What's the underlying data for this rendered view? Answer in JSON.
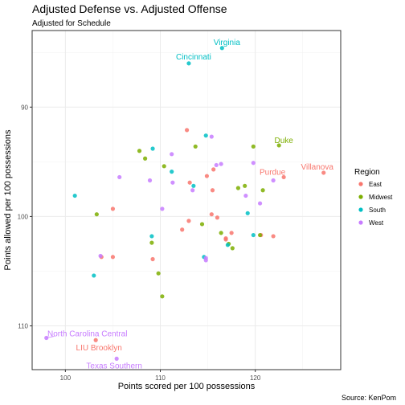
{
  "chart_data": {
    "type": "scatter",
    "title": "Adjusted Defense vs. Adjusted Offense",
    "subtitle": "Adjusted for Schedule",
    "xlabel": "Points scored per 100 possessions",
    "ylabel": "Points allowed per 100 possessions",
    "caption": "Source: KenPom",
    "xlim": [
      96.5,
      129.0
    ],
    "ylim": [
      114.0,
      83.0
    ],
    "y_reversed": true,
    "x_ticks": [
      100,
      110,
      120
    ],
    "x_tick_labels": [
      "100",
      "110",
      "120"
    ],
    "y_ticks": [
      90,
      100,
      110
    ],
    "y_tick_labels": [
      "90",
      "100",
      "110"
    ],
    "grid": true,
    "legend": {
      "title": "Region",
      "position": "right",
      "entries": [
        "East",
        "Midwest",
        "South",
        "West"
      ]
    },
    "colors": {
      "East": "#F8766D",
      "Midwest": "#7CAE00",
      "South": "#00BFC4",
      "West": "#C77CFF"
    },
    "series": [
      {
        "name": "East",
        "points": [
          [
            127.2,
            96.0
          ],
          [
            123.0,
            96.4
          ],
          [
            112.8,
            92.1
          ],
          [
            114.9,
            96.3
          ],
          [
            115.6,
            95.7
          ],
          [
            113.1,
            96.9
          ],
          [
            115.5,
            97.6
          ],
          [
            115.4,
            99.8
          ],
          [
            116.0,
            100.1
          ],
          [
            113.0,
            100.4
          ],
          [
            112.3,
            101.2
          ],
          [
            117.5,
            101.5
          ],
          [
            120.6,
            101.7
          ],
          [
            121.9,
            101.8
          ],
          [
            116.9,
            102.0
          ],
          [
            116.9,
            102.1
          ],
          [
            105.0,
            99.3
          ],
          [
            105.0,
            103.7
          ],
          [
            109.2,
            103.9
          ],
          [
            103.8,
            103.7
          ],
          [
            103.2,
            111.3
          ]
        ]
      },
      {
        "name": "Midwest",
        "points": [
          [
            122.5,
            93.5
          ],
          [
            119.8,
            93.6
          ],
          [
            113.7,
            93.6
          ],
          [
            107.8,
            94.0
          ],
          [
            108.4,
            94.7
          ],
          [
            110.4,
            95.4
          ],
          [
            118.2,
            97.4
          ],
          [
            120.8,
            97.6
          ],
          [
            118.9,
            97.2
          ],
          [
            114.4,
            100.7
          ],
          [
            103.3,
            99.8
          ],
          [
            120.5,
            101.7
          ],
          [
            116.4,
            101.5
          ],
          [
            109.1,
            102.4
          ],
          [
            117.2,
            102.5
          ],
          [
            117.6,
            102.9
          ],
          [
            109.8,
            105.2
          ],
          [
            110.2,
            107.3
          ]
        ]
      },
      {
        "name": "South",
        "points": [
          [
            116.5,
            84.6
          ],
          [
            113.0,
            86.0
          ],
          [
            114.8,
            92.6
          ],
          [
            109.2,
            93.8
          ],
          [
            111.2,
            95.9
          ],
          [
            113.5,
            97.2
          ],
          [
            101.0,
            98.1
          ],
          [
            119.2,
            99.7
          ],
          [
            119.8,
            101.7
          ],
          [
            109.1,
            101.8
          ],
          [
            117.1,
            102.6
          ],
          [
            114.6,
            103.7
          ],
          [
            103.0,
            105.4
          ]
        ]
      },
      {
        "name": "West",
        "points": [
          [
            115.4,
            92.7
          ],
          [
            111.2,
            94.3
          ],
          [
            115.9,
            95.3
          ],
          [
            116.4,
            95.2
          ],
          [
            119.8,
            95.1
          ],
          [
            105.7,
            96.4
          ],
          [
            108.9,
            96.7
          ],
          [
            111.3,
            96.9
          ],
          [
            113.4,
            97.6
          ],
          [
            121.9,
            96.7
          ],
          [
            119.0,
            98.1
          ],
          [
            120.5,
            98.8
          ],
          [
            110.2,
            99.3
          ],
          [
            114.8,
            103.8
          ],
          [
            114.8,
            104.0
          ],
          [
            103.7,
            103.6
          ],
          [
            98.0,
            111.1
          ],
          [
            105.4,
            113.0
          ]
        ]
      }
    ],
    "annotations": [
      {
        "label": "Virginia",
        "region": "South",
        "x": 116.5,
        "y": 84.6
      },
      {
        "label": "Cincinnati",
        "region": "South",
        "x": 113.0,
        "y": 86.0
      },
      {
        "label": "Duke",
        "region": "Midwest",
        "x": 122.5,
        "y": 93.5
      },
      {
        "label": "Villanova",
        "region": "East",
        "x": 127.2,
        "y": 96.0
      },
      {
        "label": "Purdue",
        "region": "East",
        "x": 123.0,
        "y": 96.4
      },
      {
        "label": "North Carolina Central",
        "region": "West",
        "x": 98.0,
        "y": 111.1
      },
      {
        "label": "LIU Brooklyn",
        "region": "East",
        "x": 103.2,
        "y": 111.3
      },
      {
        "label": "Texas Southern",
        "region": "West",
        "x": 105.4,
        "y": 113.0
      }
    ]
  }
}
